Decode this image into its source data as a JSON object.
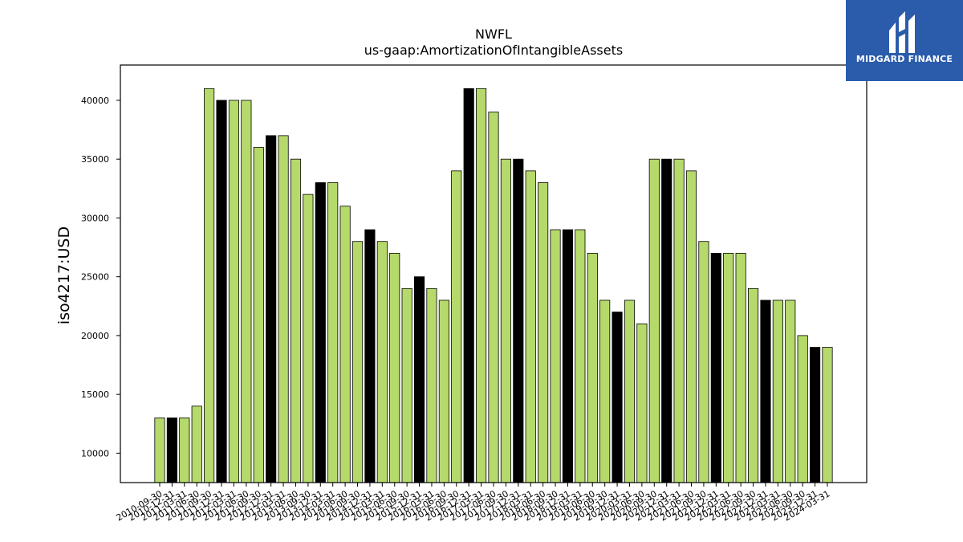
{
  "chart_data": {
    "type": "bar",
    "title": "NWFL",
    "subtitle": "us-gaap:AmortizationOfIntangibleAssets",
    "xlabel": "",
    "ylabel": "iso4217:USD",
    "ylim": [
      7500,
      43000
    ],
    "yticks": [
      10000,
      15000,
      20000,
      25000,
      30000,
      35000,
      40000
    ],
    "grid": false,
    "colors": {
      "default": "#b5d96b",
      "highlight": "#000000",
      "edge": "#000000"
    },
    "categories": [
      "2010-09-30",
      "2010-12-31",
      "2011-03-31",
      "2011-06-30",
      "2011-09-30",
      "2011-12-31",
      "2012-03-31",
      "2012-06-30",
      "2012-09-30",
      "2012-12-31",
      "2013-03-31",
      "2013-06-30",
      "2013-09-30",
      "2013-12-31",
      "2014-03-31",
      "2014-06-30",
      "2014-09-30",
      "2014-12-31",
      "2015-03-31",
      "2015-06-30",
      "2015-09-30",
      "2015-12-31",
      "2016-03-31",
      "2016-06-30",
      "2016-09-30",
      "2016-12-31",
      "2017-03-31",
      "2017-06-30",
      "2017-09-30",
      "2017-12-31",
      "2018-03-31",
      "2018-06-30",
      "2018-09-30",
      "2018-12-31",
      "2019-03-31",
      "2019-06-30",
      "2019-09-30",
      "2019-12-31",
      "2020-03-31",
      "2020-06-30",
      "2020-09-30",
      "2020-12-31",
      "2021-03-31",
      "2021-06-30",
      "2021-09-30",
      "2021-12-31",
      "2022-03-31",
      "2022-06-30",
      "2022-09-30",
      "2022-12-31",
      "2023-03-31",
      "2023-06-30",
      "2023-09-30",
      "2023-12-31",
      "2024-03-31"
    ],
    "values": [
      13000,
      13000,
      13000,
      14000,
      41000,
      40000,
      40000,
      40000,
      36000,
      37000,
      37000,
      35000,
      32000,
      33000,
      33000,
      31000,
      28000,
      29000,
      28000,
      27000,
      24000,
      25000,
      24000,
      23000,
      34000,
      41000,
      41000,
      39000,
      35000,
      35000,
      34000,
      33000,
      29000,
      29000,
      29000,
      27000,
      23000,
      22000,
      23000,
      21000,
      35000,
      35000,
      35000,
      34000,
      28000,
      27000,
      27000,
      27000,
      24000,
      23000,
      23000,
      23000,
      20000,
      19000,
      19000
    ],
    "highlight_indices": [
      1,
      5,
      9,
      13,
      17,
      21,
      25,
      29,
      33,
      37,
      41,
      45,
      49,
      53
    ]
  },
  "logo": {
    "text": "MIDGARD FINANCE",
    "background": "#2b5cab"
  }
}
